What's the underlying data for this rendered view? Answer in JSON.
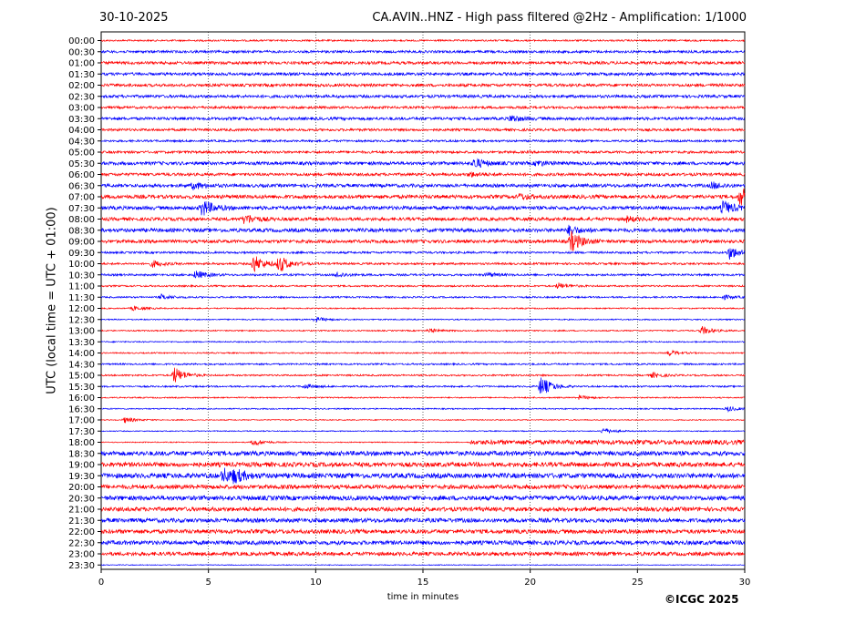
{
  "header": {
    "date": "30-10-2025",
    "title": "CA.AVIN..HNZ - High pass filtered @2Hz - Amplification: 1/1000"
  },
  "footer": {
    "copyright": "©ICGC 2025"
  },
  "chart_data": {
    "type": "helicorder",
    "xlabel": "time in minutes",
    "ylabel": "UTC (local time = UTC + 01:00)",
    "xlim": [
      0,
      30
    ],
    "x_ticks": [
      0,
      5,
      10,
      15,
      20,
      25,
      30
    ],
    "grid": "vertical dotted lines at 5-minute ticks",
    "colors": [
      "#ff0000",
      "#0000ff"
    ],
    "traces": [
      {
        "label": "00:00",
        "color": "#ff0000",
        "noise": 0.2,
        "events": []
      },
      {
        "label": "00:30",
        "color": "#0000ff",
        "noise": 0.3,
        "events": []
      },
      {
        "label": "01:00",
        "color": "#ff0000",
        "noise": 0.35,
        "events": []
      },
      {
        "label": "01:30",
        "color": "#0000ff",
        "noise": 0.35,
        "events": []
      },
      {
        "label": "02:00",
        "color": "#ff0000",
        "noise": 0.35,
        "events": []
      },
      {
        "label": "02:30",
        "color": "#0000ff",
        "noise": 0.35,
        "events": []
      },
      {
        "label": "03:00",
        "color": "#ff0000",
        "noise": 0.3,
        "events": []
      },
      {
        "label": "03:30",
        "color": "#0000ff",
        "noise": 0.35,
        "events": [
          {
            "t": 19.1,
            "a": 0.8
          }
        ]
      },
      {
        "label": "04:00",
        "color": "#ff0000",
        "noise": 0.3,
        "events": []
      },
      {
        "label": "04:30",
        "color": "#0000ff",
        "noise": 0.25,
        "events": []
      },
      {
        "label": "05:00",
        "color": "#ff0000",
        "noise": 0.3,
        "events": []
      },
      {
        "label": "05:30",
        "color": "#0000ff",
        "noise": 0.4,
        "events": [
          {
            "t": 17.4,
            "a": 1.2
          },
          {
            "t": 20.3,
            "a": 0.6
          }
        ]
      },
      {
        "label": "06:00",
        "color": "#ff0000",
        "noise": 0.35,
        "events": [
          {
            "t": 17.2,
            "a": 0.5
          }
        ]
      },
      {
        "label": "06:30",
        "color": "#0000ff",
        "noise": 0.4,
        "events": [
          {
            "t": 4.3,
            "a": 0.8
          },
          {
            "t": 28.5,
            "a": 0.7
          }
        ]
      },
      {
        "label": "07:00",
        "color": "#ff0000",
        "noise": 0.45,
        "events": [
          {
            "t": 29.8,
            "a": 2.2
          },
          {
            "t": 19.5,
            "a": 0.6
          }
        ]
      },
      {
        "label": "07:30",
        "color": "#0000ff",
        "noise": 0.45,
        "events": [
          {
            "t": 4.7,
            "a": 2.0
          },
          {
            "t": 29.0,
            "a": 1.6
          }
        ]
      },
      {
        "label": "08:00",
        "color": "#ff0000",
        "noise": 0.4,
        "events": [
          {
            "t": 6.7,
            "a": 1.2
          },
          {
            "t": 24.5,
            "a": 0.6
          }
        ]
      },
      {
        "label": "08:30",
        "color": "#0000ff",
        "noise": 0.45,
        "events": [
          {
            "t": 21.8,
            "a": 1.0
          }
        ]
      },
      {
        "label": "09:00",
        "color": "#ff0000",
        "noise": 0.4,
        "events": [
          {
            "t": 21.9,
            "a": 2.4
          }
        ]
      },
      {
        "label": "09:30",
        "color": "#0000ff",
        "noise": 0.25,
        "events": [
          {
            "t": 29.3,
            "a": 1.6
          }
        ]
      },
      {
        "label": "10:00",
        "color": "#ff0000",
        "noise": 0.25,
        "events": [
          {
            "t": 2.4,
            "a": 0.8
          },
          {
            "t": 7.1,
            "a": 2.2
          },
          {
            "t": 8.3,
            "a": 2.0
          }
        ]
      },
      {
        "label": "10:30",
        "color": "#0000ff",
        "noise": 0.25,
        "events": [
          {
            "t": 4.4,
            "a": 1.0
          },
          {
            "t": 11.0,
            "a": 0.6
          },
          {
            "t": 18.0,
            "a": 0.5
          }
        ]
      },
      {
        "label": "11:00",
        "color": "#ff0000",
        "noise": 0.2,
        "events": [
          {
            "t": 21.3,
            "a": 0.7
          }
        ]
      },
      {
        "label": "11:30",
        "color": "#0000ff",
        "noise": 0.2,
        "events": [
          {
            "t": 2.8,
            "a": 0.6
          },
          {
            "t": 29.0,
            "a": 0.5
          }
        ]
      },
      {
        "label": "12:00",
        "color": "#ff0000",
        "noise": 0.15,
        "events": [
          {
            "t": 1.5,
            "a": 0.5
          }
        ]
      },
      {
        "label": "12:30",
        "color": "#0000ff",
        "noise": 0.15,
        "events": [
          {
            "t": 10.0,
            "a": 0.6
          }
        ]
      },
      {
        "label": "13:00",
        "color": "#ff0000",
        "noise": 0.15,
        "events": [
          {
            "t": 28.0,
            "a": 1.0
          },
          {
            "t": 15.3,
            "a": 0.5
          }
        ]
      },
      {
        "label": "13:30",
        "color": "#0000ff",
        "noise": 0.15,
        "events": []
      },
      {
        "label": "14:00",
        "color": "#ff0000",
        "noise": 0.15,
        "events": [
          {
            "t": 26.5,
            "a": 0.6
          }
        ]
      },
      {
        "label": "14:30",
        "color": "#0000ff",
        "noise": 0.2,
        "events": []
      },
      {
        "label": "15:00",
        "color": "#ff0000",
        "noise": 0.2,
        "events": [
          {
            "t": 3.4,
            "a": 2.0
          },
          {
            "t": 25.7,
            "a": 0.6
          }
        ]
      },
      {
        "label": "15:30",
        "color": "#0000ff",
        "noise": 0.2,
        "events": [
          {
            "t": 20.5,
            "a": 2.4
          },
          {
            "t": 9.5,
            "a": 0.5
          }
        ]
      },
      {
        "label": "16:00",
        "color": "#ff0000",
        "noise": 0.15,
        "events": [
          {
            "t": 22.3,
            "a": 0.5
          }
        ]
      },
      {
        "label": "16:30",
        "color": "#0000ff",
        "noise": 0.15,
        "events": [
          {
            "t": 29.2,
            "a": 0.6
          }
        ]
      },
      {
        "label": "17:00",
        "color": "#ff0000",
        "noise": 0.12,
        "events": [
          {
            "t": 1.1,
            "a": 0.7
          }
        ]
      },
      {
        "label": "17:30",
        "color": "#0000ff",
        "noise": 0.12,
        "events": [
          {
            "t": 23.4,
            "a": 0.8
          }
        ]
      },
      {
        "label": "18:00",
        "color": "#ff0000",
        "noise": 0.12,
        "events": [
          {
            "t": 7.1,
            "a": 0.9
          }
        ],
        "noise_from": {
          "t": 17.2,
          "level": 0.55
        }
      },
      {
        "label": "18:30",
        "color": "#0000ff",
        "noise": 0.55,
        "events": []
      },
      {
        "label": "19:00",
        "color": "#ff0000",
        "noise": 0.55,
        "events": []
      },
      {
        "label": "19:30",
        "color": "#0000ff",
        "noise": 0.6,
        "events": [
          {
            "t": 5.7,
            "a": 1.6
          },
          {
            "t": 6.2,
            "a": 1.2
          }
        ]
      },
      {
        "label": "20:00",
        "color": "#ff0000",
        "noise": 0.5,
        "events": []
      },
      {
        "label": "20:30",
        "color": "#0000ff",
        "noise": 0.55,
        "events": []
      },
      {
        "label": "21:00",
        "color": "#ff0000",
        "noise": 0.5,
        "events": []
      },
      {
        "label": "21:30",
        "color": "#0000ff",
        "noise": 0.5,
        "events": []
      },
      {
        "label": "22:00",
        "color": "#ff0000",
        "noise": 0.5,
        "events": []
      },
      {
        "label": "22:30",
        "color": "#0000ff",
        "noise": 0.5,
        "events": []
      },
      {
        "label": "23:00",
        "color": "#ff0000",
        "noise": 0.45,
        "events": []
      },
      {
        "label": "23:30",
        "color": "#0000ff",
        "noise": 0.1,
        "events": []
      }
    ]
  }
}
